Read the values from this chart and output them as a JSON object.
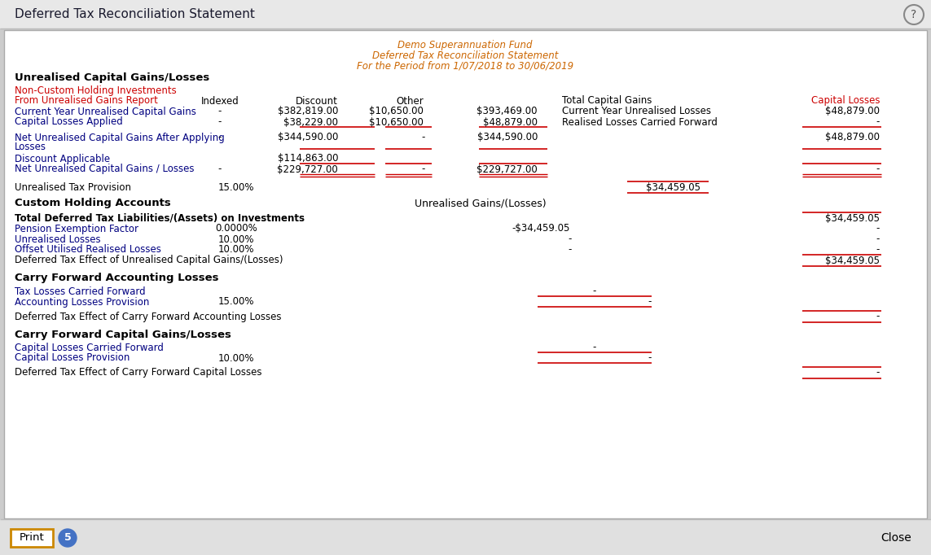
{
  "title_bar": "Deferred Tax Reconciliation Statement",
  "title_bar_color": "#e8e8e8",
  "title_bar_text_color": "#1a1a2e",
  "header_line1": "Demo Superannuation Fund",
  "header_line2": "Deferred Tax Reconciliation Statement",
  "header_line3": "For the Period from 1/07/2018 to 30/06/2019",
  "header_color": "#cc6600",
  "bg_color": "#ffffff",
  "outer_bg": "#cccccc",
  "red_text_color": "#cc0000",
  "blue_text_color": "#000080",
  "body_text_color": "#1a1a1a",
  "bold_text_color": "#000000",
  "line_color": "#cc0000",
  "bottom_bar_color": "#e0e0e0",
  "print_btn_border": "#cc8800",
  "badge_color": "#4472c4",
  "fs_small": 8.0,
  "fs_body": 8.5,
  "fs_section": 9.5
}
